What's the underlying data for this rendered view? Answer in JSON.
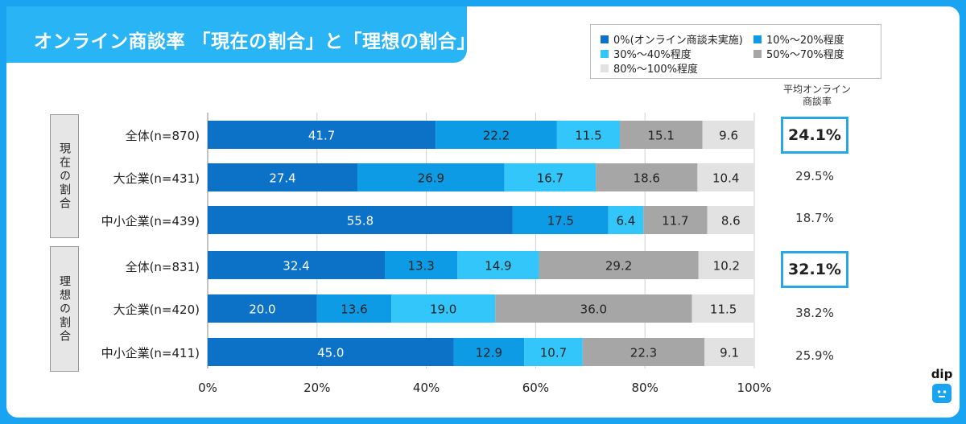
{
  "title": "オンライン商談率 「現在の割合」と「理想の割合」",
  "legend": [
    {
      "label": "0%(オンライン商談未実施)",
      "color": "#0b72c8"
    },
    {
      "label": "10%～20%程度",
      "color": "#0d9be6"
    },
    {
      "label": "30%～40%程度",
      "color": "#33c6fa"
    },
    {
      "label": "50%～70%程度",
      "color": "#a6a6a6"
    },
    {
      "label": "80%～100%程度",
      "color": "#e2e2e2"
    }
  ],
  "avg_header": [
    "平均オンライン",
    "商談率"
  ],
  "groups": [
    {
      "label": "現在の割合"
    },
    {
      "label": "理想の割合"
    }
  ],
  "rows": [
    {
      "label": "全体(n=870)",
      "avg": "24.1%",
      "highlight": true
    },
    {
      "label": "大企業(n=431)",
      "avg": "29.5%",
      "highlight": false
    },
    {
      "label": "中小企業(n=439)",
      "avg": "18.7%",
      "highlight": false
    },
    {
      "label": "全体(n=831)",
      "avg": "32.1%",
      "highlight": true
    },
    {
      "label": "大企業(n=420)",
      "avg": "38.2%",
      "highlight": false
    },
    {
      "label": "中小企業(n=411)",
      "avg": "25.9%",
      "highlight": false
    }
  ],
  "chart_data": {
    "type": "bar",
    "orientation": "horizontal",
    "stacked": true,
    "categories": [
      "全体(n=870)",
      "大企業(n=431)",
      "中小企業(n=439)",
      "全体(n=831)",
      "大企業(n=420)",
      "中小企業(n=411)"
    ],
    "series": [
      {
        "name": "0%(オンライン商談未実施)",
        "values": [
          41.7,
          27.4,
          55.8,
          32.4,
          20.0,
          45.0
        ]
      },
      {
        "name": "10%～20%程度",
        "values": [
          22.2,
          26.9,
          17.5,
          13.3,
          13.6,
          12.9
        ]
      },
      {
        "name": "30%～40%程度",
        "values": [
          11.5,
          16.7,
          6.4,
          14.9,
          19.0,
          10.7
        ]
      },
      {
        "name": "50%～70%程度",
        "values": [
          15.1,
          18.6,
          11.7,
          29.2,
          36.0,
          22.3
        ]
      },
      {
        "name": "80%～100%程度",
        "values": [
          9.6,
          10.4,
          8.6,
          10.2,
          11.5,
          9.1
        ]
      }
    ],
    "label_colors": [
      "#ffffff",
      "#222222",
      "#222222",
      "#222222",
      "#222222"
    ],
    "xlim": [
      0,
      100
    ],
    "xticks": [
      "0%",
      "20%",
      "40%",
      "60%",
      "80%",
      "100%"
    ],
    "grid": true
  },
  "brand": {
    "logo_text": "dip"
  }
}
